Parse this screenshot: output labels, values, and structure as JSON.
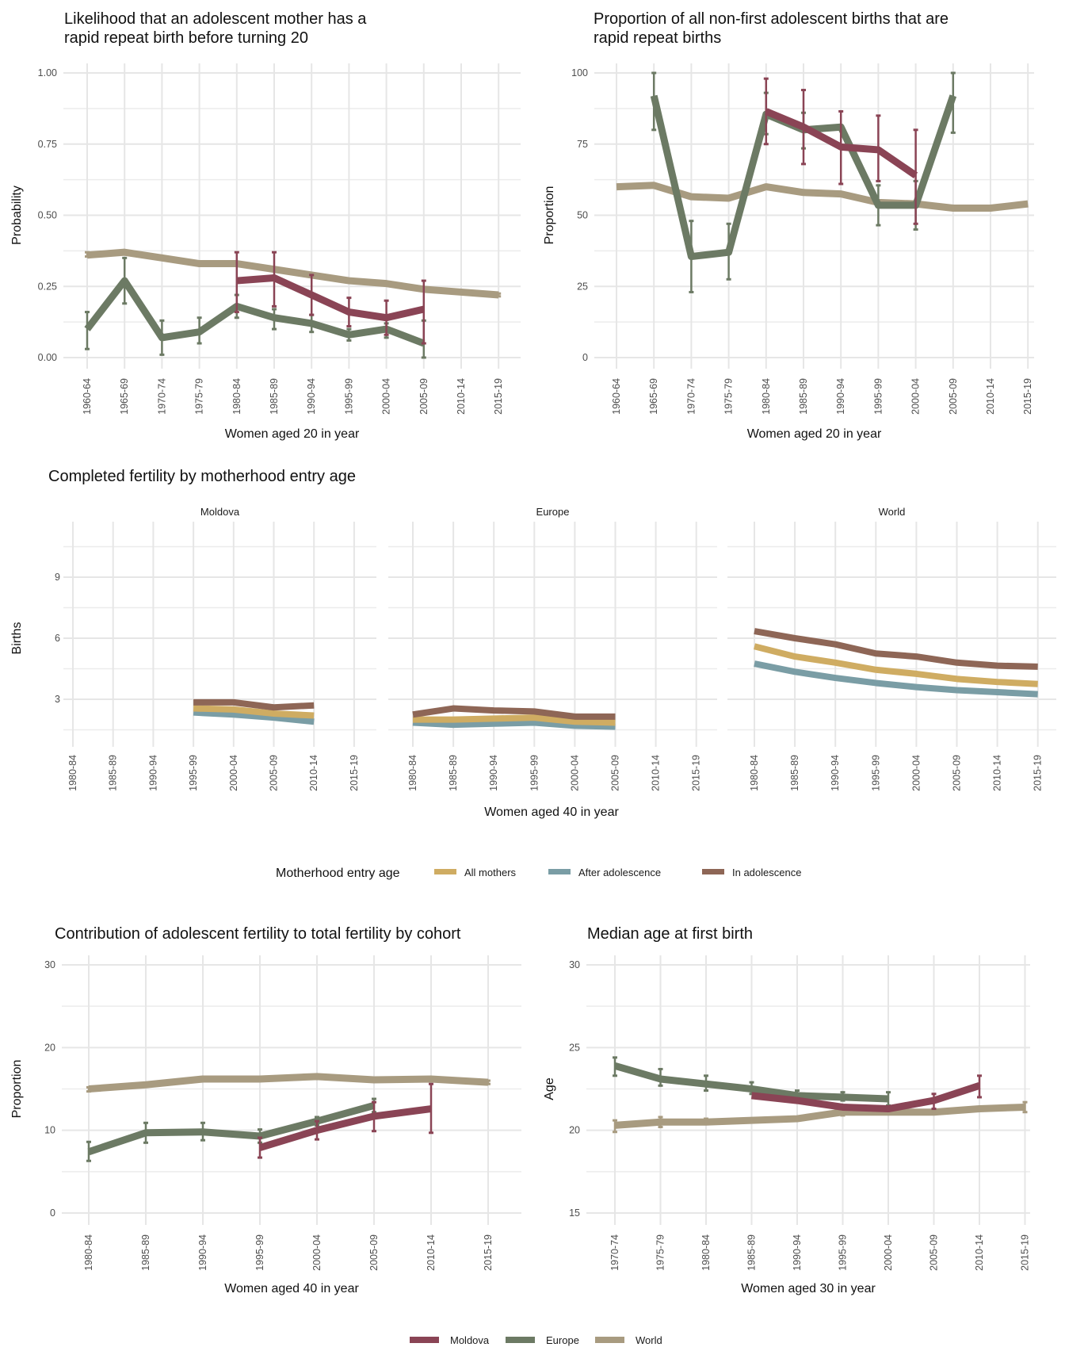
{
  "colors": {
    "Moldova": "#8a4455",
    "Europe": "#6c7a64",
    "World": "#a89b80",
    "All mothers": "#cfac62",
    "After adolescence": "#7a9da5",
    "In adolescence": "#8e6656"
  },
  "chart_data": [
    {
      "id": "rapid-repeat-likelihood",
      "type": "line",
      "title": "Likelihood that an adolescent mother has a\nrapid repeat birth before turning 20",
      "xlabel": "Women aged 20 in year",
      "ylabel": "Probability",
      "ylim": [
        0,
        1
      ],
      "yticks": [
        "0.00",
        "0.25",
        "0.50",
        "0.75",
        "1.00"
      ],
      "ytick_values": [
        0,
        0.25,
        0.5,
        0.75,
        1.0
      ],
      "grid": true,
      "categories": [
        "1960-64",
        "1965-69",
        "1970-74",
        "1975-79",
        "1980-84",
        "1985-89",
        "1990-94",
        "1995-99",
        "2000-04",
        "2005-09",
        "2010-14",
        "2015-19"
      ],
      "series": [
        {
          "name": "World",
          "values": [
            0.36,
            0.37,
            0.35,
            0.33,
            0.33,
            0.31,
            0.29,
            0.27,
            0.26,
            0.24,
            0.23,
            0.22
          ],
          "lower": [
            0.355,
            null,
            null,
            null,
            null,
            null,
            null,
            null,
            null,
            null,
            null,
            0.215
          ],
          "upper": [
            0.37,
            null,
            null,
            null,
            null,
            null,
            null,
            null,
            null,
            null,
            null,
            0.225
          ]
        },
        {
          "name": "Europe",
          "values": [
            0.1,
            0.27,
            0.07,
            0.09,
            0.18,
            0.14,
            0.12,
            0.08,
            0.1,
            0.05,
            null,
            null
          ],
          "lower": [
            0.03,
            0.19,
            0.01,
            0.05,
            0.14,
            0.1,
            0.09,
            0.06,
            0.07,
            0.0,
            null,
            null
          ],
          "upper": [
            0.16,
            0.35,
            0.13,
            0.14,
            0.22,
            0.17,
            0.15,
            0.1,
            0.12,
            0.13,
            null,
            null
          ]
        },
        {
          "name": "Moldova",
          "values": [
            null,
            null,
            null,
            null,
            0.27,
            0.28,
            0.22,
            0.16,
            0.14,
            0.17,
            null,
            null
          ],
          "lower": [
            null,
            null,
            null,
            null,
            0.16,
            0.18,
            0.15,
            0.11,
            0.08,
            0.05,
            null,
            null
          ],
          "upper": [
            null,
            null,
            null,
            null,
            0.37,
            0.37,
            0.29,
            0.21,
            0.2,
            0.27,
            null,
            null
          ]
        }
      ]
    },
    {
      "id": "rapid-repeat-proportion",
      "type": "line",
      "title": "Proportion of all non-first adolescent births that are\nrapid repeat births",
      "xlabel": "Women aged 20 in year",
      "ylabel": "Proportion",
      "ylim": [
        0,
        100
      ],
      "yticks": [
        "0",
        "25",
        "50",
        "75",
        "100"
      ],
      "ytick_values": [
        0,
        25,
        50,
        75,
        100
      ],
      "grid": true,
      "categories": [
        "1960-64",
        "1965-69",
        "1970-74",
        "1975-79",
        "1980-84",
        "1985-89",
        "1990-94",
        "1995-99",
        "2000-04",
        "2005-09",
        "2010-14",
        "2015-19"
      ],
      "series": [
        {
          "name": "World",
          "values": [
            60,
            60.5,
            56.5,
            56,
            60,
            58,
            57.5,
            54.5,
            54,
            52.5,
            52.5,
            54
          ],
          "lower": [
            null,
            null,
            null,
            null,
            null,
            null,
            null,
            null,
            null,
            null,
            null,
            null
          ],
          "upper": [
            null,
            null,
            null,
            null,
            null,
            null,
            null,
            null,
            null,
            null,
            null,
            null
          ]
        },
        {
          "name": "Europe",
          "values": [
            null,
            92,
            35.5,
            37,
            85.5,
            80,
            81,
            53.5,
            53.5,
            92,
            null,
            null
          ],
          "lower": [
            null,
            80,
            23,
            27.5,
            78.5,
            73.5,
            null,
            46.5,
            45,
            79,
            null,
            null
          ],
          "upper": [
            null,
            100,
            48,
            47,
            93,
            86,
            87,
            60.5,
            62,
            100,
            null,
            null
          ]
        },
        {
          "name": "Moldova",
          "values": [
            null,
            null,
            null,
            null,
            86.5,
            81,
            74,
            73,
            64,
            null,
            null,
            null
          ],
          "lower": [
            null,
            null,
            null,
            null,
            75,
            68,
            61,
            62,
            47,
            null,
            null,
            null
          ],
          "upper": [
            null,
            null,
            null,
            null,
            98,
            94,
            86.5,
            85,
            80,
            null,
            null,
            null
          ]
        }
      ]
    },
    {
      "id": "completed-fertility",
      "type": "line",
      "title": "Completed fertility by motherhood entry age",
      "xlabel": "Women aged 40 in year",
      "ylabel": "Births",
      "ylim": [
        0.5,
        11.5
      ],
      "yticks": [
        "3",
        "6",
        "9"
      ],
      "ytick_values": [
        3,
        6,
        9
      ],
      "grid": true,
      "categories": [
        "1980-84",
        "1985-89",
        "1990-94",
        "1995-99",
        "2000-04",
        "2005-09",
        "2010-14",
        "2015-19"
      ],
      "legend_title": "Motherhood entry age",
      "legend_position": "bottom",
      "legend": [
        "All mothers",
        "After adolescence",
        "In adolescence"
      ],
      "facets": [
        {
          "name": "Moldova",
          "series": [
            {
              "name": "All mothers",
              "values": [
                null,
                null,
                null,
                2.55,
                2.5,
                2.3,
                2.2,
                null
              ]
            },
            {
              "name": "After adolescence",
              "values": [
                null,
                null,
                null,
                2.35,
                2.25,
                2.1,
                1.9,
                null
              ]
            },
            {
              "name": "In adolescence",
              "values": [
                null,
                null,
                null,
                2.85,
                2.85,
                2.6,
                2.7,
                null
              ]
            }
          ]
        },
        {
          "name": "Europe",
          "series": [
            {
              "name": "All mothers",
              "values": [
                2.0,
                2.0,
                2.05,
                2.1,
                1.9,
                1.85,
                null,
                null
              ]
            },
            {
              "name": "After adolescence",
              "values": [
                1.85,
                1.75,
                1.8,
                1.85,
                1.7,
                1.65,
                null,
                null
              ]
            },
            {
              "name": "In adolescence",
              "values": [
                2.25,
                2.55,
                2.45,
                2.4,
                2.15,
                2.15,
                null,
                null
              ]
            }
          ]
        },
        {
          "name": "World",
          "series": [
            {
              "name": "All mothers",
              "values": [
                5.6,
                5.1,
                4.8,
                4.45,
                4.25,
                4.0,
                3.85,
                3.75
              ]
            },
            {
              "name": "After adolescence",
              "values": [
                4.75,
                4.35,
                4.05,
                3.8,
                3.6,
                3.45,
                3.35,
                3.25
              ]
            },
            {
              "name": "In adolescence",
              "values": [
                6.35,
                6.0,
                5.7,
                5.25,
                5.1,
                4.8,
                4.65,
                4.6
              ]
            }
          ]
        }
      ]
    },
    {
      "id": "adolescent-contribution",
      "type": "line",
      "title": "Contribution of adolescent fertility to total fertility by cohort",
      "xlabel": "Women aged 40 in year",
      "ylabel": "Proportion",
      "ylim": [
        0,
        30
      ],
      "yticks": [
        "0",
        "10",
        "20",
        "30"
      ],
      "ytick_values": [
        0,
        10,
        20,
        30
      ],
      "grid": true,
      "categories": [
        "1980-84",
        "1985-89",
        "1990-94",
        "1995-99",
        "2000-04",
        "2005-09",
        "2010-14",
        "2015-19"
      ],
      "series": [
        {
          "name": "World",
          "values": [
            15,
            15.5,
            16.2,
            16.2,
            16.5,
            16.1,
            16.2,
            15.8
          ],
          "lower": [
            14.7,
            null,
            null,
            null,
            null,
            null,
            null,
            15.6
          ],
          "upper": [
            15.2,
            null,
            null,
            null,
            null,
            null,
            null,
            16.0
          ]
        },
        {
          "name": "Europe",
          "values": [
            7.4,
            9.7,
            9.8,
            9.3,
            11.1,
            13.0,
            null,
            null
          ],
          "lower": [
            6.3,
            8.5,
            8.8,
            8.5,
            10.6,
            12.2,
            null,
            null
          ],
          "upper": [
            8.6,
            10.9,
            10.9,
            10.1,
            11.6,
            13.8,
            null,
            null
          ]
        },
        {
          "name": "Moldova",
          "values": [
            null,
            null,
            null,
            7.9,
            10.0,
            11.7,
            12.6,
            null
          ],
          "lower": [
            null,
            null,
            null,
            6.7,
            8.9,
            9.9,
            9.7,
            null
          ],
          "upper": [
            null,
            null,
            null,
            9.1,
            11.1,
            13.4,
            15.6,
            null
          ]
        }
      ]
    },
    {
      "id": "median-age-first-birth",
      "type": "line",
      "title": "Median age at first birth",
      "xlabel": "Women aged 30 in year",
      "ylabel": "Age",
      "ylim": [
        15,
        30
      ],
      "yticks": [
        "15",
        "20",
        "25",
        "30"
      ],
      "ytick_values": [
        15,
        20,
        25,
        30
      ],
      "grid": true,
      "categories": [
        "1970-74",
        "1975-79",
        "1980-84",
        "1985-89",
        "1990-94",
        "1995-99",
        "2000-04",
        "2005-09",
        "2010-14",
        "2015-19"
      ],
      "legend_position": "bottom",
      "legend": [
        "Moldova",
        "Europe",
        "World"
      ],
      "series": [
        {
          "name": "World",
          "values": [
            20.3,
            20.5,
            20.5,
            20.6,
            20.7,
            21.1,
            21.1,
            21.1,
            21.3,
            21.4
          ],
          "lower": [
            19.9,
            20.2,
            20.4,
            20.5,
            null,
            20.9,
            21.0,
            21.0,
            21.2,
            21.1
          ],
          "upper": [
            20.6,
            20.8,
            20.7,
            20.7,
            null,
            21.2,
            21.2,
            21.3,
            21.4,
            21.7
          ]
        },
        {
          "name": "Europe",
          "values": [
            23.9,
            23.1,
            22.8,
            22.5,
            22.1,
            22.0,
            21.9,
            null,
            null,
            null
          ],
          "lower": [
            23.3,
            22.7,
            22.4,
            22.2,
            21.9,
            21.8,
            21.5,
            null,
            null,
            null
          ],
          "upper": [
            24.4,
            23.7,
            23.3,
            22.9,
            22.4,
            22.3,
            22.3,
            null,
            null,
            null
          ]
        },
        {
          "name": "Moldova",
          "values": [
            null,
            null,
            null,
            22.1,
            21.8,
            21.4,
            21.3,
            21.8,
            22.7,
            null
          ],
          "lower": [
            null,
            null,
            null,
            null,
            null,
            null,
            null,
            21.3,
            22.0,
            null
          ],
          "upper": [
            null,
            null,
            null,
            null,
            null,
            null,
            null,
            22.2,
            23.3,
            null
          ]
        }
      ]
    }
  ],
  "legends": {
    "entry_age": {
      "title": "Motherhood entry age",
      "items": [
        "All mothers",
        "After adolescence",
        "In adolescence"
      ]
    },
    "region": {
      "items": [
        "Moldova",
        "Europe",
        "World"
      ]
    }
  }
}
